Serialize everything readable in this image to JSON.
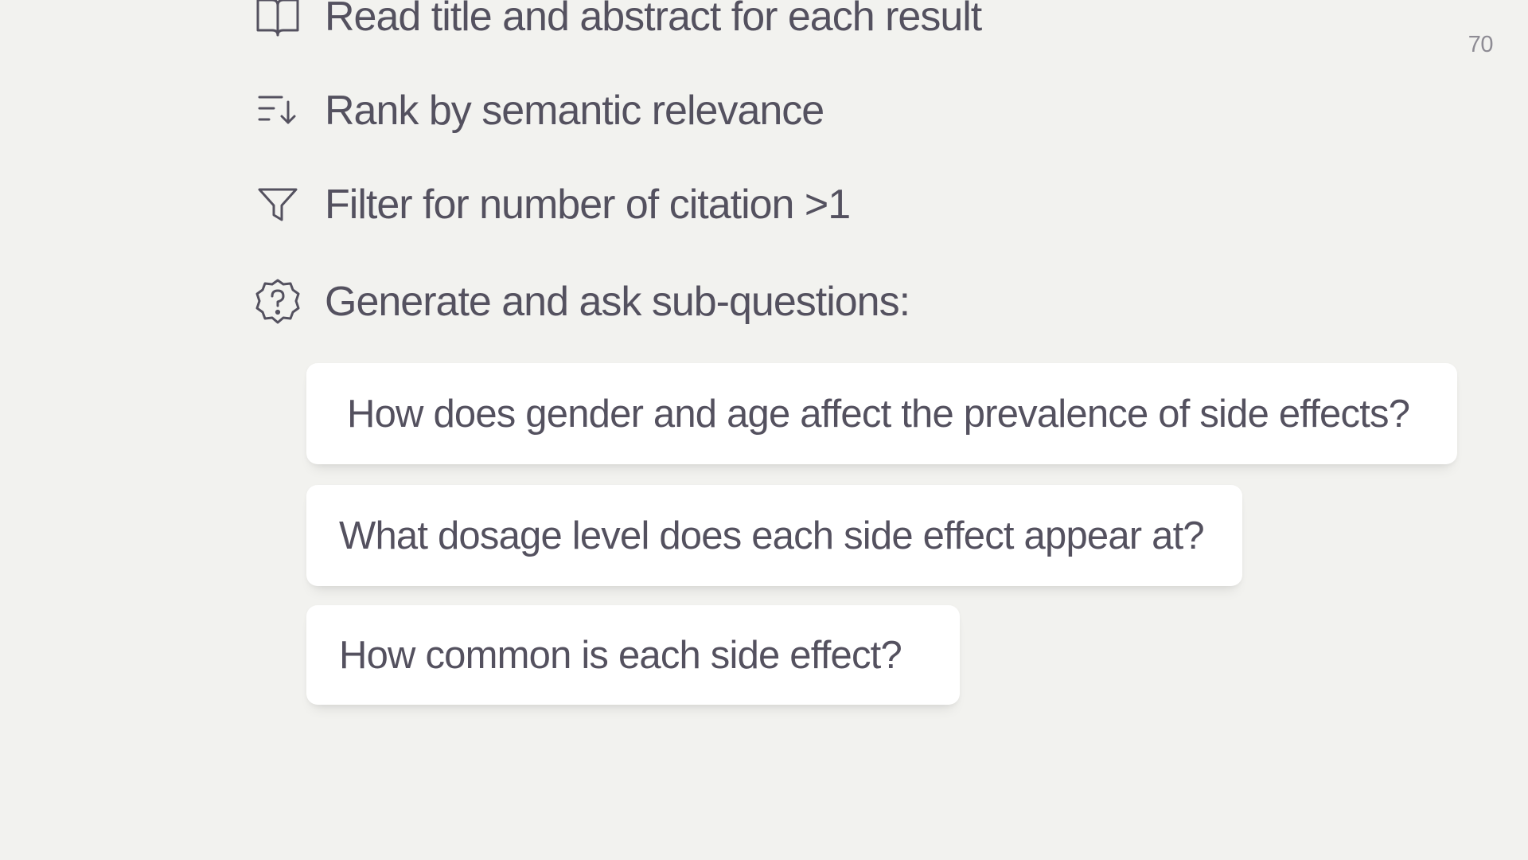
{
  "page_number": "70",
  "steps": [
    {
      "icon": "open-book-icon",
      "label": "Read title and abstract for each result"
    },
    {
      "icon": "sort-descending-icon",
      "label": "Rank by semantic relevance"
    },
    {
      "icon": "filter-icon",
      "label": "Filter for number of citation >1"
    },
    {
      "icon": "question-badge-icon",
      "label": "Generate and ask sub-questions:"
    }
  ],
  "sub_questions": [
    "How does gender and age affect the prevalence of side effects?",
    "What dosage level does each side effect appear at?",
    "How common is each side effect?"
  ]
}
